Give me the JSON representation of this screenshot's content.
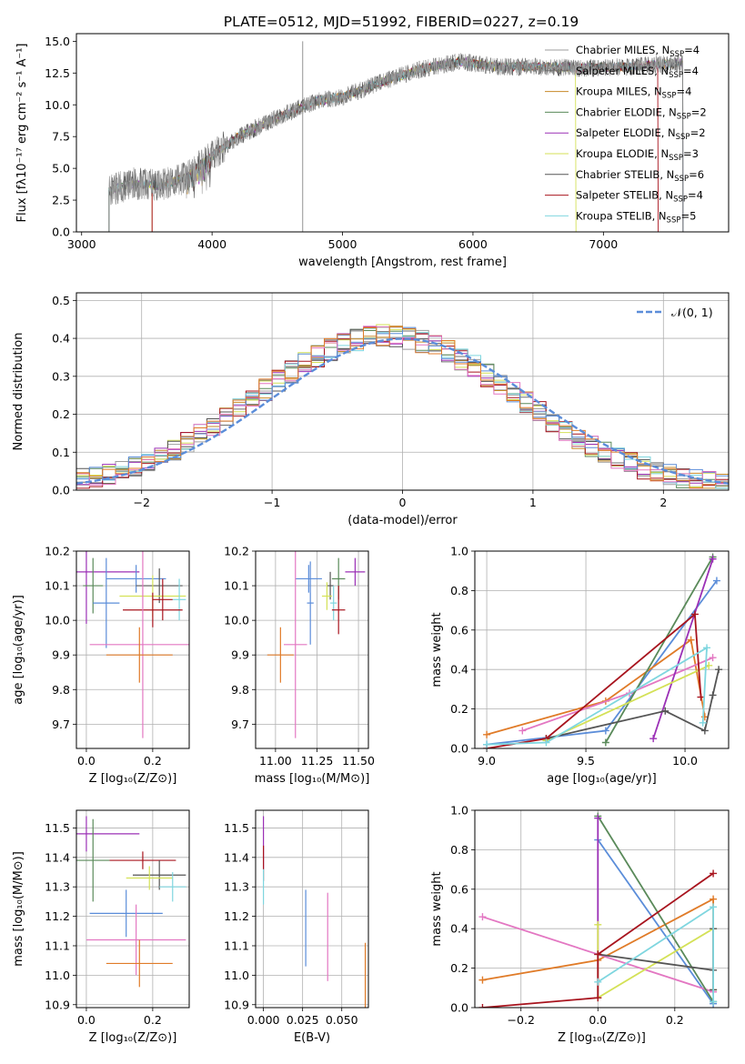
{
  "figure": {
    "title": "PLATE=0512, MJD=51992, FIBERID=0227, z=0.19"
  },
  "legend_entries": [
    {
      "label": "Chabrier MILES, N",
      "sub": "SSP",
      "suffix": "=4",
      "color": "#9e9e9e"
    },
    {
      "label": "Salpeter MILES, N",
      "sub": "SSP",
      "suffix": "=4",
      "color": "#6f6f6f"
    },
    {
      "label": "Kroupa MILES, N",
      "sub": "SSP",
      "suffix": "=4",
      "color": "#c78a28"
    },
    {
      "label": "Chabrier ELODIE, N",
      "sub": "SSP",
      "suffix": "=2",
      "color": "#5a8a5a"
    },
    {
      "label": "Salpeter ELODIE, N",
      "sub": "SSP",
      "suffix": "=2",
      "color": "#9b30b6"
    },
    {
      "label": "Kroupa ELODIE, N",
      "sub": "SSP",
      "suffix": "=3",
      "color": "#d4e157"
    },
    {
      "label": "Chabrier STELIB, N",
      "sub": "SSP",
      "suffix": "=6",
      "color": "#555555"
    },
    {
      "label": "Salpeter STELIB, N",
      "sub": "SSP",
      "suffix": "=4",
      "color": "#a8141e"
    },
    {
      "label": "Kroupa STELIB, N",
      "sub": "SSP",
      "suffix": "=5",
      "color": "#7fd6df"
    }
  ],
  "chart_data": [
    {
      "id": "spectrum",
      "type": "line",
      "xlabel": "wavelength [Angstrom, rest frame]",
      "ylabel": "Flux [fλ10⁻¹⁷ erg cm⁻² s⁻¹ A⁻¹]",
      "xlim": [
        2960,
        7960
      ],
      "ylim": [
        0,
        15.6
      ],
      "xticks": [
        "3000",
        "4000",
        "5000",
        "6000",
        "7000"
      ],
      "yticks": [
        "0.0",
        "2.5",
        "5.0",
        "7.5",
        "10.0",
        "12.5",
        "15.0"
      ],
      "continuum": [
        [
          3200,
          3.2
        ],
        [
          3400,
          3.8
        ],
        [
          3600,
          3.6
        ],
        [
          3800,
          4.3
        ],
        [
          4000,
          6.0
        ],
        [
          4200,
          7.5
        ],
        [
          4500,
          9.0
        ],
        [
          4800,
          10.3
        ],
        [
          5000,
          10.6
        ],
        [
          5300,
          11.8
        ],
        [
          5600,
          12.8
        ],
        [
          5900,
          13.4
        ],
        [
          6200,
          13.0
        ],
        [
          6500,
          13.0
        ],
        [
          6800,
          12.9
        ],
        [
          7200,
          13.0
        ],
        [
          7600,
          13.3
        ]
      ],
      "data_xrange": [
        3210,
        7610
      ],
      "spike": {
        "x": 4695,
        "y": 15.0
      },
      "grid": false,
      "legend_position": "right"
    },
    {
      "id": "residuals",
      "type": "histogram",
      "xlabel": "(data-model)/error",
      "ylabel": "Normed distribution",
      "xlim": [
        -2.5,
        2.5
      ],
      "ylim": [
        0,
        0.52
      ],
      "xticks": [
        "−2",
        "−1",
        "0",
        "1",
        "2"
      ],
      "yticks": [
        "0.0",
        "0.1",
        "0.2",
        "0.3",
        "0.4",
        "0.5"
      ],
      "bins": 50,
      "gaussian_label": "𝒩(0, 1)",
      "gaussian_color": "#5b8dd9",
      "grid": true,
      "legend_position": "top-right"
    },
    {
      "id": "age_vs_z",
      "type": "errorbar",
      "xlabel": "Z [log₁₀(Z/Z⊙)]",
      "ylabel": "age  [log₁₀(age/yr)]",
      "xlim": [
        -0.03,
        0.31
      ],
      "ylim": [
        9.63,
        10.2
      ],
      "xticks": [
        "0.0",
        "0.2"
      ],
      "yticks": [
        "9.7",
        "9.8",
        "9.9",
        "10.0",
        "10.1",
        "10.2"
      ],
      "points": [
        {
          "x": 0.0,
          "y": 10.14,
          "xerr": 0.16,
          "yerr": 0.15,
          "color": "#9b30b6"
        },
        {
          "x": 0.02,
          "y": 10.1,
          "xerr": 0.03,
          "yerr": 0.08,
          "color": "#5a8a5a"
        },
        {
          "x": 0.15,
          "y": 10.12,
          "xerr": 0.09,
          "yerr": 0.04,
          "color": "#5b8dd9"
        },
        {
          "x": 0.06,
          "y": 10.05,
          "xerr": 0.04,
          "yerr": 0.13,
          "color": "#5b8dd9"
        },
        {
          "x": 0.22,
          "y": 10.1,
          "xerr": 0.07,
          "yerr": 0.05,
          "color": "#555555"
        },
        {
          "x": 0.2,
          "y": 10.07,
          "xerr": 0.1,
          "yerr": 0.06,
          "color": "#d4e157"
        },
        {
          "x": 0.28,
          "y": 10.06,
          "xerr": 0.02,
          "yerr": 0.06,
          "color": "#7fd6df"
        },
        {
          "x": 0.23,
          "y": 10.06,
          "xerr": 0.03,
          "yerr": 0.06,
          "color": "#a8141e"
        },
        {
          "x": 0.2,
          "y": 10.03,
          "xerr": 0.09,
          "yerr": 0.05,
          "color": "#a8141e"
        },
        {
          "x": 0.17,
          "y": 9.93,
          "xerr": 0.16,
          "yerr": 0.27,
          "color": "#e377c2"
        },
        {
          "x": 0.16,
          "y": 9.9,
          "xerr": 0.1,
          "yerr": 0.08,
          "color": "#e07b28"
        }
      ],
      "grid": true
    },
    {
      "id": "age_vs_mass",
      "type": "errorbar",
      "xlabel": "mass [log₁₀(M/M⊙)]",
      "ylabel": "",
      "xlim": [
        10.88,
        11.56
      ],
      "ylim": [
        9.63,
        10.2
      ],
      "xticks": [
        "11.00",
        "11.25",
        "11.50"
      ],
      "yticks": [
        "9.7",
        "9.8",
        "9.9",
        "10.0",
        "10.1",
        "10.2"
      ],
      "points": [
        {
          "x": 11.48,
          "y": 10.14,
          "xerr": 0.06,
          "yerr": 0.04,
          "color": "#9b30b6"
        },
        {
          "x": 11.38,
          "y": 10.12,
          "xerr": 0.04,
          "yerr": 0.06,
          "color": "#5a8a5a"
        },
        {
          "x": 11.2,
          "y": 10.12,
          "xerr": 0.08,
          "yerr": 0.04,
          "color": "#5b8dd9"
        },
        {
          "x": 11.21,
          "y": 10.05,
          "xerr": 0.02,
          "yerr": 0.12,
          "color": "#5b8dd9"
        },
        {
          "x": 11.33,
          "y": 10.1,
          "xerr": 0.02,
          "yerr": 0.04,
          "color": "#555555"
        },
        {
          "x": 11.31,
          "y": 10.07,
          "xerr": 0.03,
          "yerr": 0.04,
          "color": "#d4e157"
        },
        {
          "x": 11.35,
          "y": 10.05,
          "xerr": 0.02,
          "yerr": 0.05,
          "color": "#7fd6df"
        },
        {
          "x": 11.38,
          "y": 10.03,
          "xerr": 0.04,
          "yerr": 0.07,
          "color": "#a8141e"
        },
        {
          "x": 11.12,
          "y": 9.93,
          "xerr": 0.07,
          "yerr": 0.27,
          "color": "#e377c2"
        },
        {
          "x": 11.03,
          "y": 9.9,
          "xerr": 0.08,
          "yerr": 0.08,
          "color": "#e07b28"
        }
      ],
      "grid": true
    },
    {
      "id": "weight_vs_age",
      "type": "line",
      "xlabel": "age  [log₁₀(age/yr)]",
      "ylabel": "mass weight",
      "xlim": [
        8.94,
        10.22
      ],
      "ylim": [
        0,
        1.0
      ],
      "xticks": [
        "9.0",
        "9.5",
        "10.0"
      ],
      "yticks": [
        "0.0",
        "0.2",
        "0.4",
        "0.6",
        "0.8",
        "1.0"
      ],
      "series": [
        {
          "color": "#5b8dd9",
          "points": [
            [
              9.0,
              0.02
            ],
            [
              9.6,
              0.09
            ],
            [
              10.16,
              0.85
            ]
          ]
        },
        {
          "color": "#e07b28",
          "points": [
            [
              9.0,
              0.07
            ],
            [
              9.6,
              0.24
            ],
            [
              10.03,
              0.55
            ],
            [
              10.1,
              0.16
            ]
          ]
        },
        {
          "color": "#e377c2",
          "points": [
            [
              9.18,
              0.09
            ],
            [
              9.72,
              0.28
            ],
            [
              10.14,
              0.46
            ]
          ]
        },
        {
          "color": "#5a8a5a",
          "points": [
            [
              9.6,
              0.03
            ],
            [
              10.14,
              0.97
            ]
          ]
        },
        {
          "color": "#9b30b6",
          "points": [
            [
              9.84,
              0.05
            ],
            [
              10.14,
              0.96
            ]
          ]
        },
        {
          "color": "#d4e157",
          "points": [
            [
              9.3,
              0.04
            ],
            [
              10.12,
              0.42
            ]
          ]
        },
        {
          "color": "#555555",
          "points": [
            [
              9.3,
              0.05
            ],
            [
              9.9,
              0.19
            ],
            [
              10.1,
              0.09
            ],
            [
              10.14,
              0.27
            ],
            [
              10.17,
              0.4
            ]
          ]
        },
        {
          "color": "#a8141e",
          "points": [
            [
              9.0,
              0.0
            ],
            [
              9.3,
              0.05
            ],
            [
              10.05,
              0.68
            ],
            [
              10.08,
              0.26
            ]
          ]
        },
        {
          "color": "#7fd6df",
          "points": [
            [
              9.0,
              0.02
            ],
            [
              9.3,
              0.03
            ],
            [
              10.11,
              0.51
            ],
            [
              10.09,
              0.13
            ]
          ]
        }
      ],
      "grid": true
    },
    {
      "id": "mass_vs_z",
      "type": "errorbar",
      "xlabel": "Z [log₁₀(Z/Z⊙)]",
      "ylabel": "mass [log₁₀(M/M⊙)]",
      "xlim": [
        -0.03,
        0.31
      ],
      "ylim": [
        10.89,
        11.56
      ],
      "xticks": [
        "0.0",
        "0.2"
      ],
      "yticks": [
        "10.9",
        "11.0",
        "11.1",
        "11.2",
        "11.3",
        "11.4",
        "11.5"
      ],
      "points": [
        {
          "x": 0.0,
          "y": 11.48,
          "xerr": 0.16,
          "yerr": 0.06,
          "color": "#9b30b6"
        },
        {
          "x": 0.02,
          "y": 11.39,
          "xerr": 0.05,
          "yerr": 0.14,
          "color": "#5a8a5a"
        },
        {
          "x": 0.17,
          "y": 11.39,
          "xerr": 0.1,
          "yerr": 0.03,
          "color": "#a8141e"
        },
        {
          "x": 0.22,
          "y": 11.34,
          "xerr": 0.08,
          "yerr": 0.05,
          "color": "#555555"
        },
        {
          "x": 0.19,
          "y": 11.33,
          "xerr": 0.07,
          "yerr": 0.04,
          "color": "#d4e157"
        },
        {
          "x": 0.26,
          "y": 11.3,
          "xerr": 0.04,
          "yerr": 0.05,
          "color": "#7fd6df"
        },
        {
          "x": 0.12,
          "y": 11.21,
          "xerr": 0.11,
          "yerr": 0.08,
          "color": "#5b8dd9"
        },
        {
          "x": 0.15,
          "y": 11.12,
          "xerr": 0.15,
          "yerr": 0.12,
          "color": "#e377c2"
        },
        {
          "x": 0.16,
          "y": 11.04,
          "xerr": 0.1,
          "yerr": 0.08,
          "color": "#e07b28"
        }
      ],
      "grid": true
    },
    {
      "id": "mass_vs_ebv",
      "type": "errorbar",
      "xlabel": "E(B-V)",
      "ylabel": "",
      "xlim": [
        -0.005,
        0.067
      ],
      "ylim": [
        10.89,
        11.56
      ],
      "xticks": [
        "0.000",
        "0.025",
        "0.050"
      ],
      "yticks": [
        "10.9",
        "11.0",
        "11.1",
        "11.2",
        "11.3",
        "11.4",
        "11.5"
      ],
      "points": [
        {
          "x": 0.0,
          "y": 11.45,
          "xerr": 0,
          "yerr": 0.09,
          "color": "#9b30b6"
        },
        {
          "x": 0.0,
          "y": 11.38,
          "xerr": 0,
          "yerr": 0.06,
          "color": "#a8141e"
        },
        {
          "x": 0.0,
          "y": 11.3,
          "xerr": 0,
          "yerr": 0.06,
          "color": "#7fd6df"
        },
        {
          "x": 0.027,
          "y": 11.16,
          "xerr": 0,
          "yerr": 0.13,
          "color": "#5b8dd9"
        },
        {
          "x": 0.041,
          "y": 11.13,
          "xerr": 0,
          "yerr": 0.15,
          "color": "#e377c2"
        },
        {
          "x": 0.065,
          "y": 11.0,
          "xerr": 0,
          "yerr": 0.11,
          "color": "#e07b28"
        }
      ],
      "grid": true
    },
    {
      "id": "weight_vs_z",
      "type": "line",
      "xlabel": "Z [log₁₀(Z/Z⊙)]",
      "ylabel": "mass weight",
      "xlim": [
        -0.32,
        0.34
      ],
      "ylim": [
        0,
        1.0
      ],
      "xticks": [
        "−0.2",
        "0.0",
        "0.2"
      ],
      "yticks": [
        "0.0",
        "0.2",
        "0.4",
        "0.6",
        "0.8",
        "1.0"
      ],
      "series": [
        {
          "color": "#5b8dd9",
          "points": [
            [
              0.0,
              0.85
            ],
            [
              0.3,
              0.02
            ]
          ]
        },
        {
          "color": "#e07b28",
          "points": [
            [
              -0.3,
              0.14
            ],
            [
              0.0,
              0.24
            ],
            [
              0.3,
              0.55
            ],
            [
              0.3,
              0.09
            ]
          ]
        },
        {
          "color": "#e377c2",
          "points": [
            [
              -0.3,
              0.46
            ],
            [
              0.3,
              0.08
            ]
          ]
        },
        {
          "color": "#5a8a5a",
          "points": [
            [
              0.0,
              0.97
            ],
            [
              0.3,
              0.03
            ]
          ]
        },
        {
          "color": "#9b30b6",
          "points": [
            [
              0.0,
              0.96
            ],
            [
              0.0,
              0.05
            ]
          ]
        },
        {
          "color": "#d4e157",
          "points": [
            [
              0.0,
              0.42
            ],
            [
              0.0,
              0.05
            ],
            [
              0.3,
              0.4
            ]
          ]
        },
        {
          "color": "#555555",
          "points": [
            [
              0.0,
              0.27
            ],
            [
              0.3,
              0.19
            ],
            [
              0.3,
              0.4
            ],
            [
              0.3,
              0.09
            ]
          ]
        },
        {
          "color": "#a8141e",
          "points": [
            [
              -0.3,
              0.0
            ],
            [
              0.0,
              0.05
            ],
            [
              0.0,
              0.27
            ],
            [
              0.3,
              0.68
            ]
          ]
        },
        {
          "color": "#7fd6df",
          "points": [
            [
              0.0,
              0.13
            ],
            [
              0.3,
              0.51
            ],
            [
              0.3,
              0.03
            ]
          ]
        }
      ],
      "grid": true
    }
  ]
}
